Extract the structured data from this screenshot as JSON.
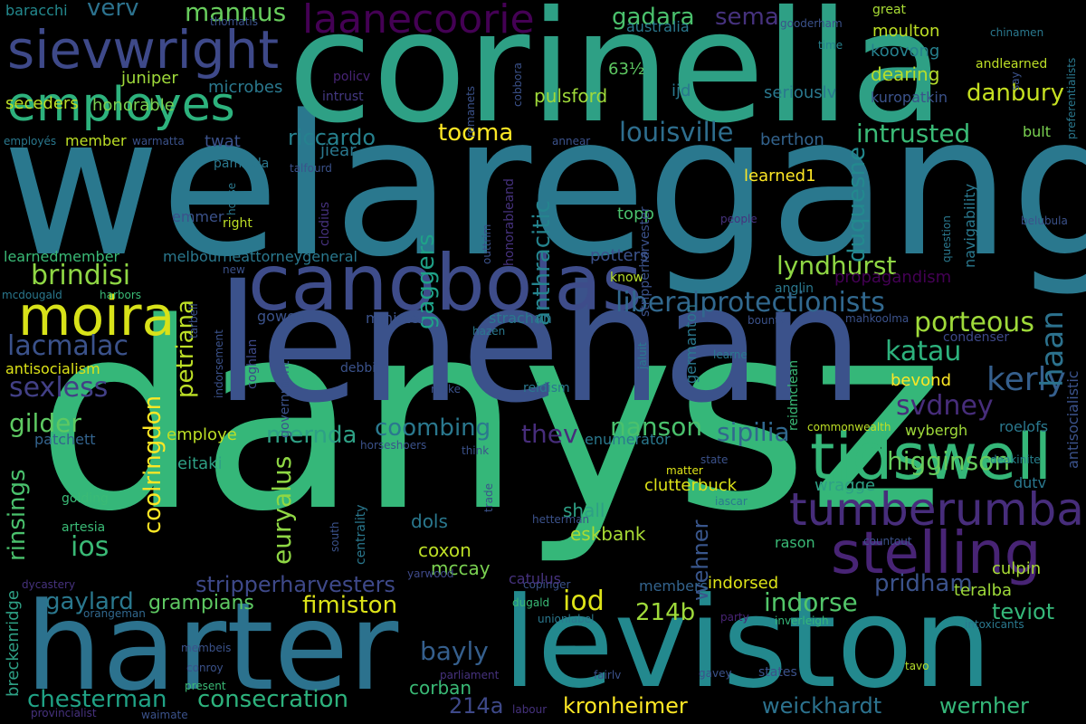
{
  "words": [
    {
      "text": "welaregang",
      "color": "#2a788e",
      "rot": false
    },
    {
      "text": "danysz",
      "color": "#35b779",
      "rot": false
    },
    {
      "text": "corinella",
      "color": "#2ea085",
      "rot": false
    },
    {
      "text": "lenehan",
      "color": "#3b528b",
      "rot": false
    },
    {
      "text": "leviston",
      "color": "#23898e",
      "rot": false
    },
    {
      "text": "harter",
      "color": "#2c728e",
      "rot": false
    },
    {
      "text": "canobolas",
      "color": "#3e4c8a",
      "rot": false
    },
    {
      "text": "tidswell",
      "color": "#35b779",
      "rot": false
    },
    {
      "text": "stelling",
      "color": "#482475",
      "rot": false
    },
    {
      "text": "tumberumba",
      "color": "#472d7b",
      "rot": false
    },
    {
      "text": "sievwright",
      "color": "#3e4989",
      "rot": false
    },
    {
      "text": "employes",
      "color": "#2db27d",
      "rot": false
    },
    {
      "text": "laanecoorie",
      "color": "#440154",
      "rot": false
    },
    {
      "text": "moira",
      "color": "#d8e219",
      "rot": false
    },
    {
      "text": "liberalprotectionists",
      "color": "#31688e",
      "rot": false
    },
    {
      "text": "lyndhurst",
      "color": "#8fd744",
      "rot": false
    },
    {
      "text": "louisville",
      "color": "#2e6e8e",
      "rot": false
    },
    {
      "text": "intrusted",
      "color": "#3aba76",
      "rot": false
    },
    {
      "text": "danbury",
      "color": "#c5e021",
      "rot": false
    },
    {
      "text": "gadara",
      "color": "#4ac16d",
      "rot": false
    },
    {
      "text": "sema",
      "color": "#46327e",
      "rot": false
    },
    {
      "text": "mannus",
      "color": "#67cc5c",
      "rot": false
    },
    {
      "text": "verv",
      "color": "#2c728e",
      "rot": false
    },
    {
      "text": "riccardo",
      "color": "#26818e",
      "rot": false
    },
    {
      "text": "tooma",
      "color": "#fde725",
      "rot": false
    },
    {
      "text": "brindisi",
      "color": "#8fd744",
      "rot": false
    },
    {
      "text": "lacmalac",
      "color": "#3b528b",
      "rot": false
    },
    {
      "text": "sexless",
      "color": "#424086",
      "rot": false
    },
    {
      "text": "gilder",
      "color": "#5ec962",
      "rot": false
    },
    {
      "text": "porteous",
      "color": "#9fda3a",
      "rot": false
    },
    {
      "text": "katau",
      "color": "#2db27d",
      "rot": false
    },
    {
      "text": "kerly",
      "color": "#355f8d",
      "rot": false
    },
    {
      "text": "svdney",
      "color": "#472d7b",
      "rot": false
    },
    {
      "text": "haan",
      "color": "#2c728e",
      "rot": false
    },
    {
      "text": "mernda",
      "color": "#2ea085",
      "rot": false
    },
    {
      "text": "coombing",
      "color": "#2a788e",
      "rot": false
    },
    {
      "text": "nanson",
      "color": "#4ac16d",
      "rot": false
    },
    {
      "text": "sipilia",
      "color": "#31688e",
      "rot": false
    },
    {
      "text": "thev",
      "color": "#472d7b",
      "rot": false
    },
    {
      "text": "higginson",
      "color": "#67cc5c",
      "rot": false
    },
    {
      "text": "euryalus",
      "color": "#8fd744",
      "rot": true
    },
    {
      "text": "coolringdon",
      "color": "#fde725",
      "rot": true
    },
    {
      "text": "petriana",
      "color": "#bddf26",
      "rot": true
    },
    {
      "text": "gaggers",
      "color": "#1fa188",
      "rot": true
    },
    {
      "text": "anthracitic",
      "color": "#25848e",
      "rot": true
    },
    {
      "text": "duquesne",
      "color": "#23898e",
      "rot": true
    },
    {
      "text": "rinsings",
      "color": "#4ac16d",
      "rot": true
    },
    {
      "text": "wehner",
      "color": "#39568c",
      "rot": true
    },
    {
      "text": "chesterman",
      "color": "#20a386",
      "rot": false
    },
    {
      "text": "consecration",
      "color": "#2db27d",
      "rot": false
    },
    {
      "text": "kronheimer",
      "color": "#fde725",
      "rot": false
    },
    {
      "text": "weickhardt",
      "color": "#2c728e",
      "rot": false
    },
    {
      "text": "wernher",
      "color": "#35b779",
      "rot": false
    },
    {
      "text": "214a",
      "color": "#3e4989",
      "rot": false
    },
    {
      "text": "bayly",
      "color": "#355f8d",
      "rot": false
    },
    {
      "text": "iod",
      "color": "#dde318",
      "rot": false
    },
    {
      "text": "214b",
      "color": "#9fda3a",
      "rot": false
    },
    {
      "text": "pridham",
      "color": "#3b528b",
      "rot": false
    },
    {
      "text": "teviot",
      "color": "#35b779",
      "rot": false
    },
    {
      "text": "indorse",
      "color": "#52c569",
      "rot": false
    },
    {
      "text": "fimiston",
      "color": "#dde318",
      "rot": false
    },
    {
      "text": "stripperharvesters",
      "color": "#3e4989",
      "rot": false
    },
    {
      "text": "gaylard",
      "color": "#2a788e",
      "rot": false
    },
    {
      "text": "grampians",
      "color": "#5ec962",
      "rot": false
    },
    {
      "text": "eskbank",
      "color": "#a8db34",
      "rot": false
    },
    {
      "text": "coxon",
      "color": "#bddf26",
      "rot": false
    },
    {
      "text": "mccay",
      "color": "#7ad151",
      "rot": false
    },
    {
      "text": "dols",
      "color": "#2a788e",
      "rot": false
    },
    {
      "text": "shall",
      "color": "#2ea085",
      "rot": false
    },
    {
      "text": "corban",
      "color": "#3aba76",
      "rot": false
    },
    {
      "text": "ios",
      "color": "#3aba76",
      "rot": false
    },
    {
      "text": "honorable",
      "color": "#7ad151",
      "rot": false
    },
    {
      "text": "juniper",
      "color": "#9fda3a",
      "rot": false
    },
    {
      "text": "seceders",
      "color": "#bddf26",
      "rot": false
    },
    {
      "text": "member",
      "color": "#bddf26",
      "rot": false
    },
    {
      "text": "twat",
      "color": "#3b528b",
      "rot": false
    },
    {
      "text": "microbes",
      "color": "#2a788e",
      "rot": false
    },
    {
      "text": "baracchi",
      "color": "#23898e",
      "rot": false
    },
    {
      "text": "employés",
      "color": "#2a788e",
      "rot": false
    },
    {
      "text": "warmatta",
      "color": "#3b528b",
      "rot": false
    },
    {
      "text": "pulsford",
      "color": "#9fda3a",
      "rot": false
    },
    {
      "text": "63½",
      "color": "#5ec962",
      "rot": false
    },
    {
      "text": "ijd",
      "color": "#2a788e",
      "rot": false
    },
    {
      "text": "intrust",
      "color": "#443983",
      "rot": false
    },
    {
      "text": "policv",
      "color": "#482475",
      "rot": false
    },
    {
      "text": "australia",
      "color": "#2a788e",
      "rot": false
    },
    {
      "text": "koovong",
      "color": "#26818e",
      "rot": false
    },
    {
      "text": "moulton",
      "color": "#bddf26",
      "rot": false
    },
    {
      "text": "dearing",
      "color": "#b5de2b",
      "rot": false
    },
    {
      "text": "seriouslv",
      "color": "#2a788e",
      "rot": false
    },
    {
      "text": "kuropatkin",
      "color": "#3b528b",
      "rot": false
    },
    {
      "text": "berthon",
      "color": "#33638d",
      "rot": false
    },
    {
      "text": "learned1",
      "color": "#fde725",
      "rot": false
    },
    {
      "text": "topp",
      "color": "#4ac16d",
      "rot": false
    },
    {
      "text": "potters",
      "color": "#3b528b",
      "rot": false
    },
    {
      "text": "propagandism",
      "color": "#440154",
      "rot": false
    },
    {
      "text": "anglin",
      "color": "#2a788e",
      "rot": false
    },
    {
      "text": "people",
      "color": "#46327e",
      "rot": false
    },
    {
      "text": "belubula",
      "color": "#3b528b",
      "rot": false
    },
    {
      "text": "bult",
      "color": "#7ad151",
      "rot": false
    },
    {
      "text": "andlearned",
      "color": "#bddf26",
      "rot": false
    },
    {
      "text": "chinamen",
      "color": "#2a788e",
      "rot": false
    },
    {
      "text": "great",
      "color": "#a8db34",
      "rot": false
    },
    {
      "text": "gooderham",
      "color": "#3b528b",
      "rot": false
    },
    {
      "text": "time",
      "color": "#26818e",
      "rot": false
    },
    {
      "text": "thomatis",
      "color": "#3b528b",
      "rot": false
    },
    {
      "text": "condenser",
      "color": "#3e4989",
      "rot": false
    },
    {
      "text": "bevond",
      "color": "#fde725",
      "rot": false
    },
    {
      "text": "roelofs",
      "color": "#2a788e",
      "rot": false
    },
    {
      "text": "wybergh",
      "color": "#9fda3a",
      "rot": false
    },
    {
      "text": "commonwealth",
      "color": "#bddf26",
      "rot": false
    },
    {
      "text": "deakinite",
      "color": "#26818e",
      "rot": false
    },
    {
      "text": "dutv",
      "color": "#2a788e",
      "rot": false
    },
    {
      "text": "wragge",
      "color": "#2ea085",
      "rot": false
    },
    {
      "text": "clutterbuck",
      "color": "#dde318",
      "rot": false
    },
    {
      "text": "enumerator",
      "color": "#2a788e",
      "rot": false
    },
    {
      "text": "eitaki",
      "color": "#2ea085",
      "rot": false
    },
    {
      "text": "employe",
      "color": "#bddf26",
      "rot": false
    },
    {
      "text": "patchett",
      "color": "#33638d",
      "rot": false
    },
    {
      "text": "golding",
      "color": "#3aba76",
      "rot": false
    },
    {
      "text": "artesia",
      "color": "#3aba76",
      "rot": false
    },
    {
      "text": "horseshoers",
      "color": "#3b528b",
      "rot": false
    },
    {
      "text": "think",
      "color": "#3b528b",
      "rot": false
    },
    {
      "text": "iascar",
      "color": "#2a788e",
      "rot": false
    },
    {
      "text": "matter",
      "color": "#dde318",
      "rot": false
    },
    {
      "text": "state",
      "color": "#3b528b",
      "rot": false
    },
    {
      "text": "hetterman",
      "color": "#3b528b",
      "rot": false
    },
    {
      "text": "rason",
      "color": "#3aba76",
      "rot": false
    },
    {
      "text": "countout",
      "color": "#3b528b",
      "rot": false
    },
    {
      "text": "culpin",
      "color": "#a8db34",
      "rot": false
    },
    {
      "text": "teralba",
      "color": "#9fda3a",
      "rot": false
    },
    {
      "text": "indorsed",
      "color": "#dde318",
      "rot": false
    },
    {
      "text": "members",
      "color": "#33638d",
      "rot": false
    },
    {
      "text": "copinger",
      "color": "#3b528b",
      "rot": false
    },
    {
      "text": "dugald",
      "color": "#3aba76",
      "rot": false
    },
    {
      "text": "unionlabel",
      "color": "#2a788e",
      "rot": false
    },
    {
      "text": "party",
      "color": "#482475",
      "rot": false
    },
    {
      "text": "inverleigh",
      "color": "#35b779",
      "rot": false
    },
    {
      "text": "intoxicants",
      "color": "#2a788e",
      "rot": false
    },
    {
      "text": "catulus",
      "color": "#46327e",
      "rot": false
    },
    {
      "text": "yarwood",
      "color": "#3e4989",
      "rot": false
    },
    {
      "text": "dycastery",
      "color": "#46327e",
      "rot": false
    },
    {
      "text": "orangeman",
      "color": "#31688e",
      "rot": false
    },
    {
      "text": "membeis",
      "color": "#3b528b",
      "rot": false
    },
    {
      "text": "conroy",
      "color": "#3b528b",
      "rot": false
    },
    {
      "text": "present",
      "color": "#3aba76",
      "rot": false
    },
    {
      "text": "provincialist",
      "color": "#46327e",
      "rot": false
    },
    {
      "text": "waimate",
      "color": "#3b528b",
      "rot": false
    },
    {
      "text": "parliament",
      "color": "#46327e",
      "rot": false
    },
    {
      "text": "labour",
      "color": "#46327e",
      "rot": false
    },
    {
      "text": "fairlv",
      "color": "#3b528b",
      "rot": false
    },
    {
      "text": "gavey",
      "color": "#3b528b",
      "rot": false
    },
    {
      "text": "states",
      "color": "#3b528b",
      "rot": false
    },
    {
      "text": "tavo",
      "color": "#b5de2b",
      "rot": false
    },
    {
      "text": "hazen",
      "color": "#2a788e",
      "rot": false
    },
    {
      "text": "debbil",
      "color": "#3b528b",
      "rot": false
    },
    {
      "text": "make",
      "color": "#3b528b",
      "rot": false
    },
    {
      "text": "reidism",
      "color": "#2a788e",
      "rot": false
    },
    {
      "text": "learne",
      "color": "#2a788e",
      "rot": false
    },
    {
      "text": "bountv",
      "color": "#3b528b",
      "rot": false
    },
    {
      "text": "mahkoolma",
      "color": "#3b528b",
      "rot": false
    },
    {
      "text": "strachan",
      "color": "#2a788e",
      "rot": false
    },
    {
      "text": "minister",
      "color": "#3b528b",
      "rot": false
    },
    {
      "text": "gowen",
      "color": "#3b528b",
      "rot": false
    },
    {
      "text": "emmer",
      "color": "#3b528b",
      "rot": false
    },
    {
      "text": "right",
      "color": "#bddf26",
      "rot": false
    },
    {
      "text": "new",
      "color": "#3b528b",
      "rot": false
    },
    {
      "text": "learnedmember",
      "color": "#3aba76",
      "rot": false
    },
    {
      "text": "melbourneattorneygeneral",
      "color": "#2a788e",
      "rot": false
    },
    {
      "text": "mcdougald",
      "color": "#2a788e",
      "rot": false
    },
    {
      "text": "harbors",
      "color": "#3aba76",
      "rot": false
    },
    {
      "text": "antisocialism",
      "color": "#dde318",
      "rot": false
    },
    {
      "text": "indorsement",
      "color": "#3b528b",
      "rot": true
    },
    {
      "text": "pambula",
      "color": "#2a788e",
      "rot": false
    },
    {
      "text": "talfourd",
      "color": "#3b528b",
      "rot": false
    },
    {
      "text": "jiear",
      "color": "#2a788e",
      "rot": false
    },
    {
      "text": "know",
      "color": "#b5de2b",
      "rot": false
    },
    {
      "text": "breckenridge",
      "color": "#2ea085",
      "rot": true
    },
    {
      "text": "navigability",
      "color": "#2a788e",
      "rot": true
    },
    {
      "text": "question",
      "color": "#2a788e",
      "rot": true
    },
    {
      "text": "preferentialists",
      "color": "#2a788e",
      "rot": true
    },
    {
      "text": "antisocialistic",
      "color": "#3b528b",
      "rot": true
    },
    {
      "text": "say",
      "color": "#3b528b",
      "rot": true
    },
    {
      "text": "stripperharvester",
      "color": "#3b528b",
      "rot": true
    },
    {
      "text": "honorableand",
      "color": "#46327e",
      "rot": true
    },
    {
      "text": "outtrim",
      "color": "#3b528b",
      "rot": true
    },
    {
      "text": "clodius",
      "color": "#46327e",
      "rot": true
    },
    {
      "text": "coghlan",
      "color": "#3e4989",
      "rot": true
    },
    {
      "text": "government",
      "color": "#3b528b",
      "rot": true
    },
    {
      "text": "centrality",
      "color": "#2a788e",
      "rot": true
    },
    {
      "text": "house",
      "color": "#2a788e",
      "rot": true
    },
    {
      "text": "tarbell",
      "color": "#3b528b",
      "rot": true
    },
    {
      "text": "germanton",
      "color": "#2a788e",
      "rot": true
    },
    {
      "text": "reidmclean",
      "color": "#3aba76",
      "rot": true
    },
    {
      "text": "jaluit",
      "color": "#2a788e",
      "rot": true
    },
    {
      "text": "cobbora",
      "color": "#3b528b",
      "rot": true
    },
    {
      "text": "remanets",
      "color": "#3b528b",
      "rot": true
    },
    {
      "text": "annear",
      "color": "#3b528b",
      "rot": false
    },
    {
      "text": "south",
      "color": "#3b528b",
      "rot": true
    },
    {
      "text": "trade",
      "color": "#3b528b",
      "rot": true
    }
  ]
}
